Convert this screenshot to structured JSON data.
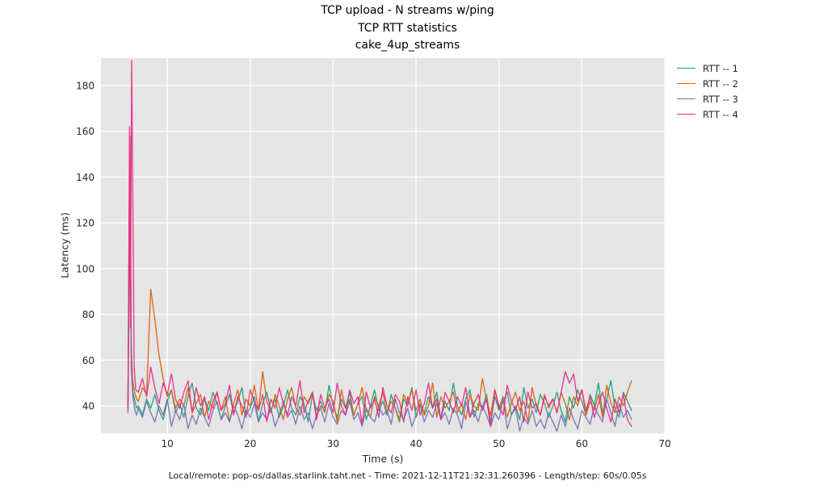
{
  "footer": "Local/remote: pop-os/dallas.starlink.taht.net - Time: 2021-12-11T21:32:31.260396 - Length/step: 60s/0.05s",
  "chart_data": {
    "type": "line",
    "title": "TCP upload - N streams w/ping / TCP RTT statistics / cake_4up_streams",
    "title_lines": [
      "TCP upload - N streams w/ping",
      "TCP RTT statistics",
      "cake_4up_streams"
    ],
    "xlabel": "Time (s)",
    "ylabel": "Latency (ms)",
    "xlim": [
      2,
      70
    ],
    "ylim": [
      28,
      192
    ],
    "xticks": [
      10,
      20,
      30,
      40,
      50,
      60,
      70
    ],
    "yticks": [
      40,
      60,
      80,
      100,
      120,
      140,
      160,
      180
    ],
    "grid": true,
    "plot_bg": "#e5e5e5",
    "grid_color": "#ffffff",
    "legend_position": "upper-right-outside",
    "series": [
      {
        "name": "RTT -- 1",
        "color": "#1b9e77",
        "head": [
          [
            5.25,
            38
          ],
          [
            5.4,
            118
          ],
          [
            5.5,
            150
          ],
          [
            5.65,
            58
          ],
          [
            5.85,
            46
          ],
          [
            6.1,
            42
          ],
          [
            6.3,
            39
          ]
        ],
        "t0": 6.5,
        "dt": 0.5,
        "values": [
          40,
          36,
          43,
          39,
          45,
          38,
          34,
          42,
          47,
          37,
          41,
          35,
          44,
          50,
          39,
          36,
          43,
          38,
          46,
          41,
          34,
          40,
          45,
          37,
          42,
          48,
          36,
          39,
          44,
          33,
          41,
          46,
          38,
          43,
          35,
          40,
          47,
          39,
          36,
          44,
          41,
          33,
          45,
          38,
          42,
          37,
          49,
          40,
          35,
          43,
          39,
          46,
          36,
          41,
          44,
          34,
          40,
          47,
          38,
          42,
          36,
          45,
          39,
          33,
          43,
          40,
          48,
          35,
          41,
          37,
          44,
          39,
          46,
          34,
          42,
          38,
          50,
          40,
          36,
          43,
          47,
          35,
          41,
          39,
          45,
          33,
          44,
          38,
          42,
          46,
          36,
          40,
          34,
          48,
          39,
          43,
          37,
          45,
          41,
          35,
          40,
          46,
          38,
          33,
          44,
          39,
          47,
          42,
          36,
          45,
          40,
          50,
          37,
          43,
          51,
          39,
          35,
          46,
          42,
          38
        ]
      },
      {
        "name": "RTT -- 2",
        "color": "#d95f02",
        "head": [
          [
            5.25,
            40
          ],
          [
            5.4,
            126
          ],
          [
            5.5,
            158
          ],
          [
            5.65,
            68
          ],
          [
            5.8,
            52
          ],
          [
            6.05,
            46
          ],
          [
            6.3,
            43
          ]
        ],
        "t0": 6.5,
        "dt": 0.5,
        "values": [
          42,
          48,
          45,
          91,
          78,
          62,
          52,
          44,
          47,
          39,
          43,
          40,
          48,
          37,
          41,
          45,
          35,
          42,
          39,
          46,
          38,
          44,
          33,
          41,
          47,
          36,
          43,
          40,
          49,
          38,
          55,
          42,
          37,
          45,
          40,
          34,
          43,
          48,
          39,
          36,
          44,
          41,
          46,
          35,
          40,
          38,
          45,
          42,
          33,
          47,
          39,
          43,
          36,
          41,
          48,
          38,
          35,
          44,
          40,
          46,
          37,
          42,
          39,
          34,
          45,
          41,
          47,
          38,
          43,
          36,
          40,
          50,
          35,
          44,
          39,
          42,
          46,
          37,
          41,
          34,
          45,
          40,
          38,
          52,
          43,
          36,
          47,
          39,
          44,
          35,
          41,
          46,
          38,
          42,
          33,
          48,
          40,
          36,
          45,
          39,
          43,
          37,
          46,
          41,
          34,
          44,
          40,
          47,
          36,
          42,
          38,
          45,
          35,
          49,
          41,
          37,
          44,
          40,
          46,
          51
        ]
      },
      {
        "name": "RTT -- 3",
        "color": "#7570b3",
        "head": [
          [
            5.25,
            37
          ],
          [
            5.4,
            98
          ],
          [
            5.5,
            133
          ],
          [
            5.65,
            56
          ],
          [
            5.85,
            44
          ],
          [
            6.1,
            38
          ],
          [
            6.3,
            36
          ]
        ],
        "t0": 6.5,
        "dt": 0.5,
        "values": [
          39,
          35,
          42,
          37,
          33,
          40,
          36,
          43,
          31,
          38,
          34,
          41,
          30,
          36,
          32,
          39,
          35,
          31,
          38,
          42,
          34,
          37,
          33,
          40,
          36,
          30,
          38,
          35,
          41,
          33,
          37,
          34,
          39,
          31,
          36,
          42,
          35,
          38,
          32,
          40,
          34,
          37,
          30,
          36,
          39,
          33,
          41,
          35,
          32,
          38,
          36,
          42,
          34,
          37,
          31,
          39,
          35,
          33,
          40,
          36,
          38,
          32,
          43,
          37,
          34,
          39,
          31,
          36,
          40,
          33,
          38,
          35,
          41,
          34,
          37,
          32,
          39,
          36,
          30,
          42,
          35,
          38,
          33,
          40,
          36,
          31,
          37,
          34,
          43,
          30,
          36,
          39,
          29,
          35,
          32,
          38,
          31,
          34,
          30,
          37,
          33,
          29,
          36,
          31,
          39,
          34,
          30,
          38,
          35,
          32,
          40,
          36,
          33,
          43,
          37,
          31,
          41,
          35,
          38,
          34
        ]
      },
      {
        "name": "RTT -- 4",
        "color": "#e7298a",
        "head": [
          [
            5.25,
            39
          ],
          [
            5.35,
            88
          ],
          [
            5.45,
            162
          ],
          [
            5.55,
            74
          ],
          [
            5.7,
            191
          ],
          [
            5.85,
            128
          ],
          [
            6.0,
            57
          ],
          [
            6.2,
            47
          ]
        ],
        "t0": 6.5,
        "dt": 0.5,
        "values": [
          46,
          52,
          44,
          57,
          48,
          41,
          50,
          45,
          54,
          43,
          39,
          46,
          51,
          37,
          48,
          40,
          44,
          34,
          42,
          46,
          38,
          41,
          49,
          36,
          44,
          40,
          35,
          47,
          42,
          38,
          45,
          33,
          43,
          39,
          48,
          41,
          36,
          44,
          40,
          51,
          37,
          42,
          46,
          34,
          45,
          39,
          43,
          37,
          50,
          40,
          36,
          47,
          41,
          44,
          32,
          46,
          39,
          43,
          35,
          48,
          40,
          37,
          45,
          42,
          33,
          44,
          38,
          47,
          36,
          41,
          50,
          39,
          43,
          34,
          46,
          42,
          37,
          44,
          40,
          48,
          35,
          41,
          45,
          38,
          43,
          31,
          47,
          40,
          36,
          49,
          42,
          38,
          44,
          33,
          46,
          39,
          41,
          36,
          44,
          40,
          43,
          37,
          46,
          55,
          50,
          54,
          42,
          47,
          38,
          44,
          35,
          41,
          46,
          39,
          33,
          43,
          37,
          45,
          34,
          31
        ]
      }
    ]
  }
}
